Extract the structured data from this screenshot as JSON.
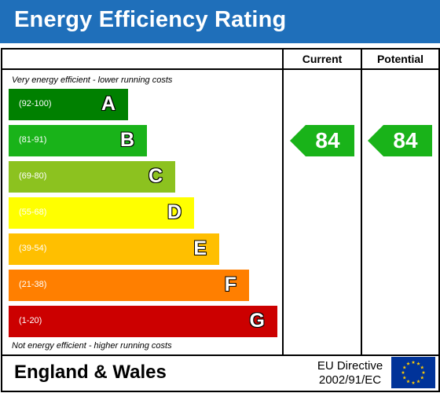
{
  "header": {
    "title": "Energy Efficiency Rating"
  },
  "columns": {
    "current": "Current",
    "potential": "Potential"
  },
  "notes": {
    "top": "Very energy efficient - lower running costs",
    "bottom": "Not energy efficient - higher running costs"
  },
  "bands": [
    {
      "range": "(92-100)",
      "letter": "A",
      "color": "#008000"
    },
    {
      "range": "(81-91)",
      "letter": "B",
      "color": "#19b319"
    },
    {
      "range": "(69-80)",
      "letter": "C",
      "color": "#8cc21f"
    },
    {
      "range": "(55-68)",
      "letter": "D",
      "color": "#ffff00"
    },
    {
      "range": "(39-54)",
      "letter": "E",
      "color": "#ffbf00"
    },
    {
      "range": "(21-38)",
      "letter": "F",
      "color": "#ff7f00"
    },
    {
      "range": "(1-20)",
      "letter": "G",
      "color": "#cc0000"
    }
  ],
  "ratings": {
    "current": {
      "value": "84",
      "band": "B",
      "color": "#19b319"
    },
    "potential": {
      "value": "84",
      "band": "B",
      "color": "#19b319"
    }
  },
  "footer": {
    "region": "England & Wales",
    "directive_line1": "EU Directive",
    "directive_line2": "2002/91/EC",
    "flag_icon": "eu-flag-icon"
  }
}
